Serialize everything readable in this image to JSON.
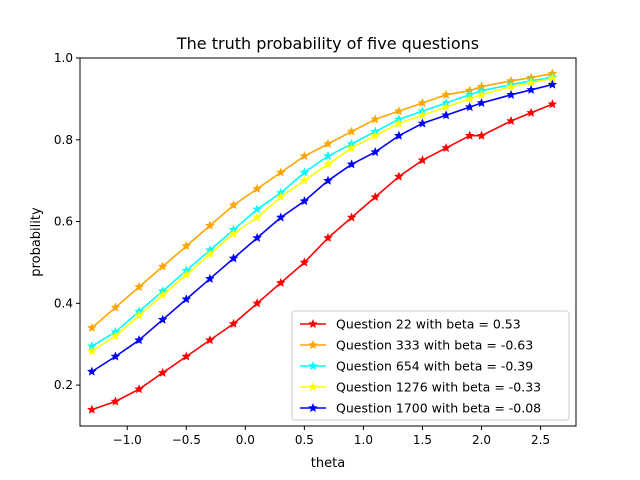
{
  "chart_data": {
    "type": "line",
    "title": "The truth probability of five questions",
    "xlabel": "theta",
    "ylabel": "probability",
    "xlim": [
      -1.4,
      2.8
    ],
    "ylim": [
      0.1,
      1.0
    ],
    "xticks": [
      -1.0,
      -0.5,
      0.0,
      0.5,
      1.0,
      1.5,
      2.0,
      2.5
    ],
    "xtick_labels": [
      "−1.0",
      "−0.5",
      "0.0",
      "0.5",
      "1.0",
      "1.5",
      "2.0",
      "2.5"
    ],
    "yticks": [
      0.2,
      0.4,
      0.6,
      0.8,
      1.0
    ],
    "ytick_labels": [
      "0.2",
      "0.4",
      "0.6",
      "0.8",
      "1.0"
    ],
    "grid": false,
    "legend_position": "lower-right",
    "marker": "star",
    "series": [
      {
        "name": "Question 22 with beta = 0.53",
        "color": "#ff0000",
        "x": [
          -1.3,
          -1.1,
          -0.9,
          -0.7,
          -0.5,
          -0.3,
          -0.1,
          0.1,
          0.3,
          0.5,
          0.7,
          0.9,
          1.1,
          1.3,
          1.5,
          1.7,
          1.9,
          2.0,
          2.25,
          2.42,
          2.6
        ],
        "y": [
          0.14,
          0.16,
          0.19,
          0.23,
          0.27,
          0.31,
          0.35,
          0.4,
          0.45,
          0.5,
          0.56,
          0.61,
          0.66,
          0.71,
          0.75,
          0.78,
          0.81,
          0.81,
          0.846,
          0.866,
          0.887
        ]
      },
      {
        "name": "Question 333 with beta = -0.63",
        "color": "#ffa500",
        "x": [
          -1.3,
          -1.1,
          -0.9,
          -0.7,
          -0.5,
          -0.3,
          -0.1,
          0.1,
          0.3,
          0.5,
          0.7,
          0.9,
          1.1,
          1.3,
          1.5,
          1.7,
          1.9,
          2.0,
          2.25,
          2.42,
          2.6
        ],
        "y": [
          0.34,
          0.39,
          0.44,
          0.49,
          0.54,
          0.59,
          0.64,
          0.68,
          0.72,
          0.76,
          0.79,
          0.82,
          0.85,
          0.87,
          0.89,
          0.91,
          0.92,
          0.93,
          0.944,
          0.952,
          0.962
        ]
      },
      {
        "name": "Question 654 with beta = -0.39",
        "color": "#00ffff",
        "x": [
          -1.3,
          -1.1,
          -0.9,
          -0.7,
          -0.5,
          -0.3,
          -0.1,
          0.1,
          0.3,
          0.5,
          0.7,
          0.9,
          1.1,
          1.3,
          1.5,
          1.7,
          1.9,
          2.0,
          2.25,
          2.42,
          2.6
        ],
        "y": [
          0.295,
          0.33,
          0.38,
          0.43,
          0.48,
          0.53,
          0.58,
          0.63,
          0.67,
          0.72,
          0.76,
          0.79,
          0.82,
          0.85,
          0.87,
          0.89,
          0.91,
          0.92,
          0.935,
          0.944,
          0.953
        ]
      },
      {
        "name": "Question 1276 with beta = -0.33",
        "color": "#ffff00",
        "x": [
          -1.3,
          -1.1,
          -0.9,
          -0.7,
          -0.5,
          -0.3,
          -0.1,
          0.1,
          0.3,
          0.5,
          0.7,
          0.9,
          1.1,
          1.3,
          1.5,
          1.7,
          1.9,
          2.0,
          2.25,
          2.42,
          2.6
        ],
        "y": [
          0.283,
          0.32,
          0.37,
          0.42,
          0.47,
          0.52,
          0.57,
          0.61,
          0.66,
          0.7,
          0.74,
          0.78,
          0.81,
          0.84,
          0.86,
          0.88,
          0.9,
          0.91,
          0.93,
          0.94,
          0.95
        ]
      },
      {
        "name": "Question 1700 with beta = -0.08",
        "color": "#0000ff",
        "x": [
          -1.3,
          -1.1,
          -0.9,
          -0.7,
          -0.5,
          -0.3,
          -0.1,
          0.1,
          0.3,
          0.5,
          0.7,
          0.9,
          1.1,
          1.3,
          1.5,
          1.7,
          1.9,
          2.0,
          2.25,
          2.42,
          2.6
        ],
        "y": [
          0.233,
          0.27,
          0.31,
          0.36,
          0.41,
          0.46,
          0.51,
          0.56,
          0.61,
          0.65,
          0.7,
          0.74,
          0.77,
          0.81,
          0.84,
          0.86,
          0.88,
          0.89,
          0.91,
          0.922,
          0.935
        ]
      }
    ]
  }
}
